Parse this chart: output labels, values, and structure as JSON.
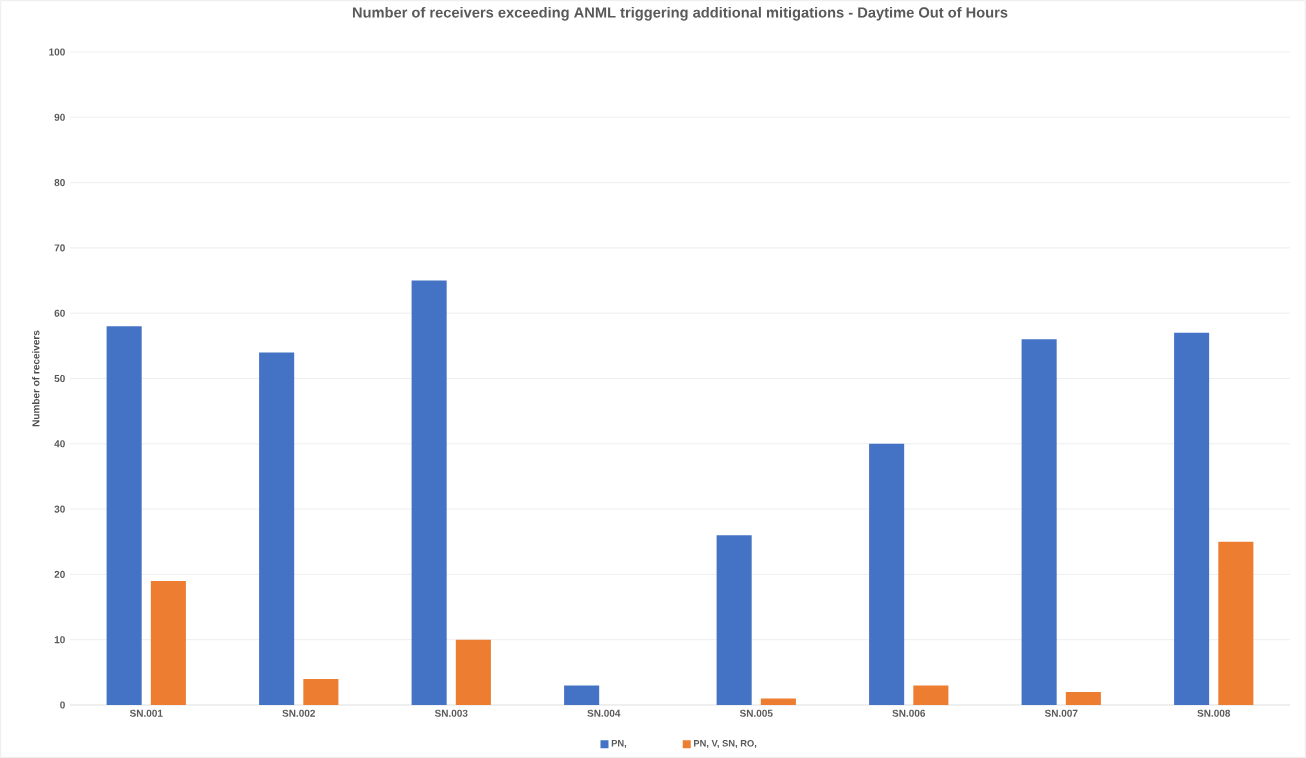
{
  "chart_data": {
    "type": "bar",
    "title": "Number of receivers exceeding ANML triggering additional mitigations - Daytime Out of Hours",
    "ylabel": "Number of receivers",
    "categories": [
      "SN.001",
      "SN.002",
      "SN.003",
      "SN.004",
      "SN.005",
      "SN.006",
      "SN.007",
      "SN.008"
    ],
    "series": [
      {
        "name": "PN,",
        "color": "#4472c4",
        "values": [
          58,
          54,
          65,
          3,
          26,
          40,
          56,
          57
        ]
      },
      {
        "name": "PN, V, SN, RO,",
        "color": "#ed7d31",
        "values": [
          19,
          4,
          10,
          0,
          1,
          3,
          2,
          25
        ]
      }
    ],
    "ylim": [
      0,
      100
    ],
    "yticks": [
      0,
      10,
      20,
      30,
      40,
      50,
      60,
      70,
      80,
      90,
      100
    ],
    "grid": "y",
    "legend": "bottom"
  }
}
